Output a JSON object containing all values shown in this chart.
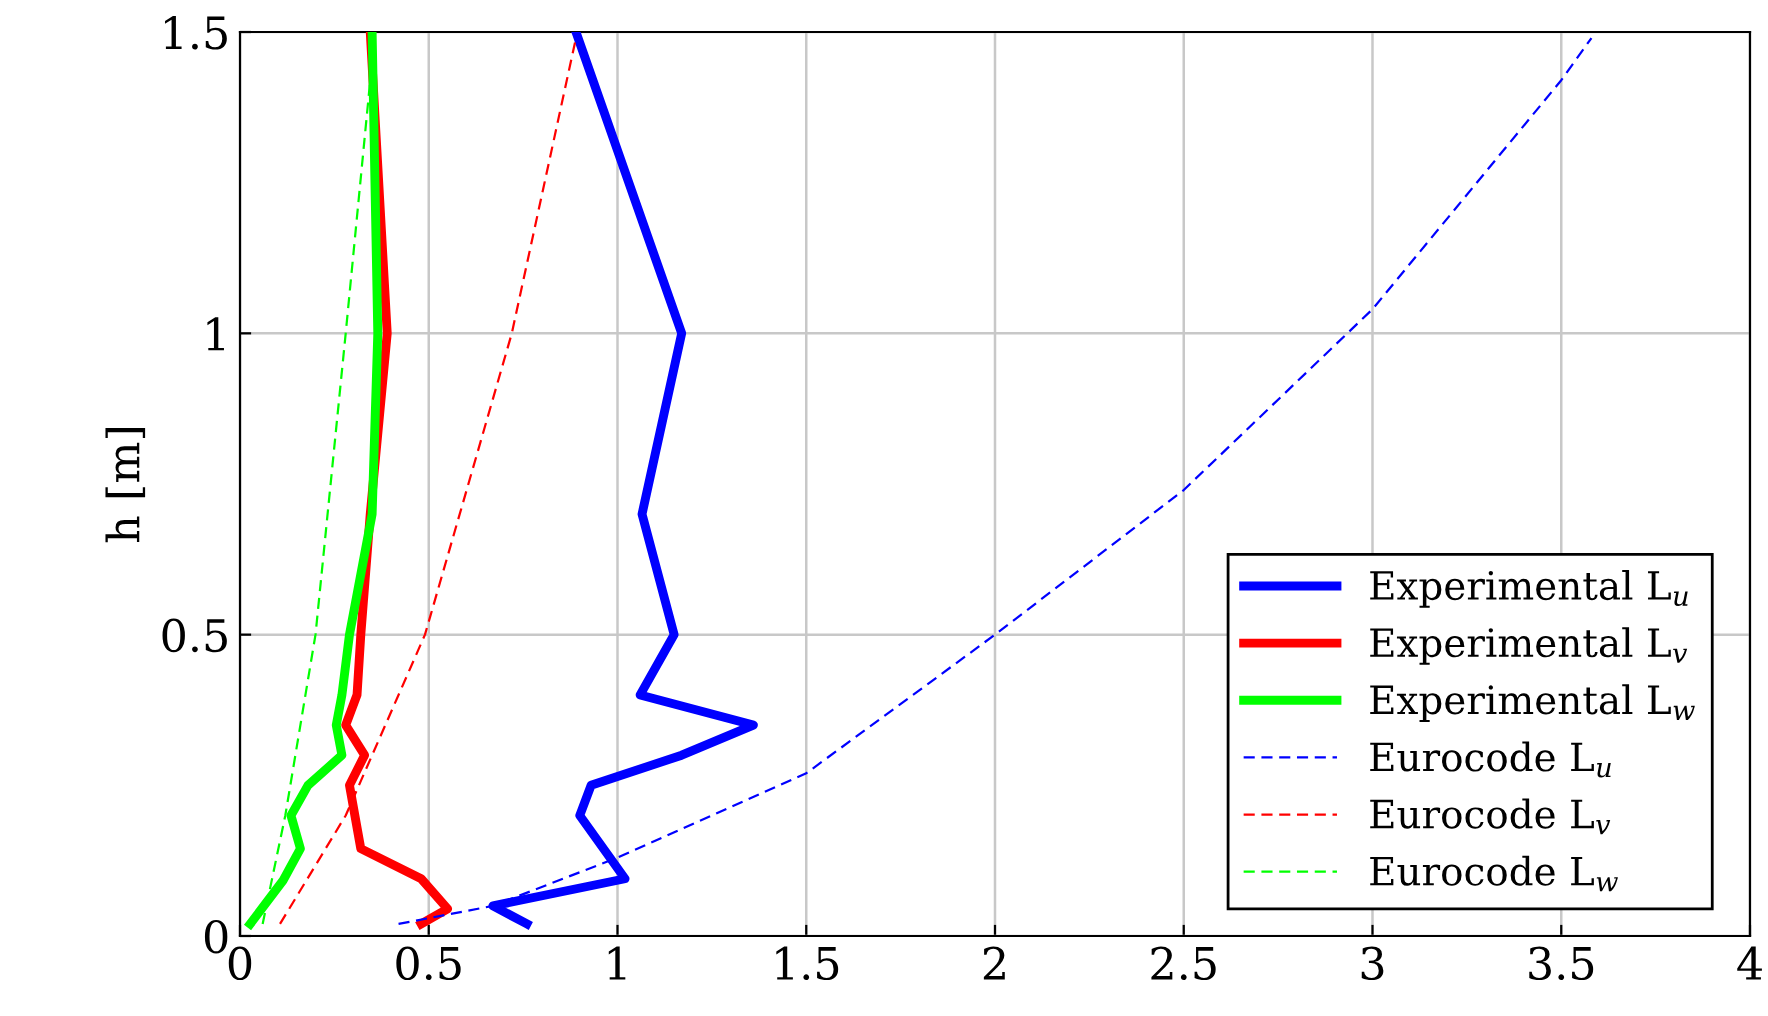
{
  "chart_data": {
    "type": "line",
    "ylabel": "h [m]",
    "xlim": [
      0,
      4
    ],
    "ylim": [
      0,
      1.5
    ],
    "xticks": [
      0,
      0.5,
      1,
      1.5,
      2,
      2.5,
      3,
      3.5,
      4
    ],
    "yticks": [
      0,
      0.5,
      1,
      1.5
    ],
    "grid": true,
    "legend": "bottom right",
    "marker": "none",
    "series": [
      {
        "name": "Experimental L$_{u}$",
        "color": "#0000ff",
        "line_style": "solid",
        "x": [
          0.76,
          0.67,
          1.02,
          0.9,
          0.93,
          1.17,
          1.36,
          1.06,
          1.15,
          1.065,
          1.17,
          0.89
        ],
        "values": [
          0.02,
          0.05,
          0.095,
          0.2,
          0.25,
          0.3,
          0.35,
          0.4,
          0.5,
          0.7,
          1.0,
          1.5
        ]
      },
      {
        "name": "Experimental L$_{v}$",
        "color": "#ff0000",
        "line_style": "solid",
        "x": [
          0.48,
          0.55,
          0.48,
          0.32,
          0.29,
          0.33,
          0.28,
          0.31,
          0.32,
          0.345,
          0.39,
          0.345
        ],
        "values": [
          0.02,
          0.045,
          0.095,
          0.145,
          0.25,
          0.3,
          0.35,
          0.4,
          0.5,
          0.7,
          1.0,
          1.5
        ]
      },
      {
        "name": "Experimental L$_{w}$",
        "color": "#00ff00",
        "line_style": "solid",
        "x": [
          0.027,
          0.115,
          0.16,
          0.135,
          0.18,
          0.27,
          0.255,
          0.27,
          0.29,
          0.35,
          0.365,
          0.35
        ],
        "values": [
          0.02,
          0.093,
          0.145,
          0.2,
          0.25,
          0.3,
          0.35,
          0.4,
          0.5,
          0.7,
          1.0,
          1.5
        ]
      },
      {
        "name": "Eurocode L$_{u}$",
        "color": "#0000ff",
        "line_style": "dashed",
        "x": [
          0.42,
          0.67,
          1.0,
          1.5,
          2.0,
          2.5,
          3.0,
          3.5,
          3.58
        ],
        "values": [
          0.02,
          0.05,
          0.13,
          0.27,
          0.5,
          0.74,
          1.04,
          1.42,
          1.49
        ]
      },
      {
        "name": "Eurocode L$_{v}$",
        "color": "#ff0000",
        "line_style": "dashed",
        "x": [
          0.106,
          0.28,
          0.49,
          0.72,
          0.89
        ],
        "values": [
          0.02,
          0.2,
          0.5,
          1.0,
          1.49
        ]
      },
      {
        "name": "Eurocode L$_{w}$",
        "color": "#00ff00",
        "line_style": "dashed",
        "x": [
          0.06,
          0.12,
          0.2,
          0.28,
          0.345,
          0.35
        ],
        "values": [
          0.02,
          0.2,
          0.5,
          1.0,
          1.42,
          1.5
        ]
      }
    ]
  }
}
